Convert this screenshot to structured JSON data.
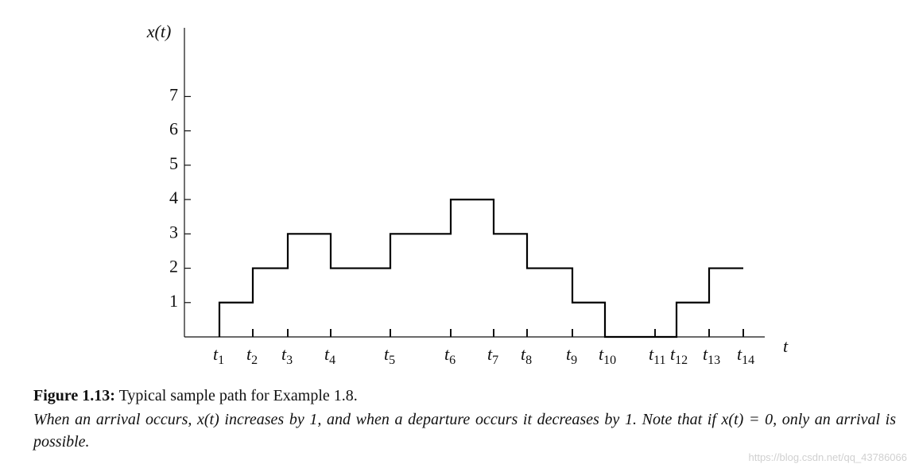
{
  "chart_data": {
    "type": "step",
    "ylabel": "x(t)",
    "xlabel": "t",
    "xlim": [
      0,
      73
    ],
    "ylim": [
      0,
      9
    ],
    "yticks": [
      1,
      2,
      3,
      4,
      5,
      6,
      7
    ],
    "xticks": [
      {
        "value": 4.4,
        "label": "t1"
      },
      {
        "value": 8.6,
        "label": "t2"
      },
      {
        "value": 13,
        "label": "t3"
      },
      {
        "value": 18.4,
        "label": "t4"
      },
      {
        "value": 25.9,
        "label": "t5"
      },
      {
        "value": 33.5,
        "label": "t6"
      },
      {
        "value": 38.9,
        "label": "t7"
      },
      {
        "value": 43.1,
        "label": "t8"
      },
      {
        "value": 48.8,
        "label": "t9"
      },
      {
        "value": 52.9,
        "label": "t10"
      },
      {
        "value": 59.2,
        "label": "t11"
      },
      {
        "value": 61.9,
        "label": "t12"
      },
      {
        "value": 66,
        "label": "t13"
      },
      {
        "value": 70.3,
        "label": "t14"
      }
    ],
    "x": [
      4.4,
      8.6,
      13,
      18.4,
      25.9,
      33.5,
      38.9,
      43.1,
      48.8,
      52.9,
      59.2,
      61.9,
      66,
      70.3
    ],
    "values": [
      1,
      2,
      3,
      2,
      3,
      4,
      3,
      2,
      1,
      0,
      0,
      1,
      2,
      2
    ],
    "color": "#000000"
  },
  "caption": {
    "label": "Figure 1.13:",
    "text": "Typical sample path for Example 1.8.",
    "note": "When an arrival occurs, x(t) increases by 1, and when a departure occurs it decreases by 1. Note that if x(t) = 0, only an arrival is possible."
  },
  "watermark": "https://blog.csdn.net/qq_43786066"
}
